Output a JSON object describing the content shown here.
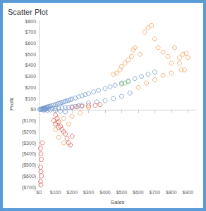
{
  "chart_data": {
    "type": "scatter",
    "title": "Scatter Plot",
    "x_label": "Sales",
    "y_label": "Profit",
    "xlim": [
      0,
      950
    ],
    "xticks": [
      {
        "value": 0,
        "label": "$0"
      },
      {
        "value": 100,
        "label": "$100"
      },
      {
        "value": 200,
        "label": "$200"
      },
      {
        "value": 300,
        "label": "$300"
      },
      {
        "value": 400,
        "label": "$400"
      },
      {
        "value": 500,
        "label": "$500"
      },
      {
        "value": 600,
        "label": "$600"
      },
      {
        "value": 700,
        "label": "$700"
      },
      {
        "value": 800,
        "label": "$800"
      },
      {
        "value": 900,
        "label": "$900"
      }
    ],
    "ylim": [
      -700,
      800
    ],
    "yticks": [
      {
        "value": -700,
        "label": "($700)"
      },
      {
        "value": -600,
        "label": "($600)"
      },
      {
        "value": -500,
        "label": "($500)"
      },
      {
        "value": -400,
        "label": "($400)"
      },
      {
        "value": -300,
        "label": "($300)"
      },
      {
        "value": -200,
        "label": "($200)"
      },
      {
        "value": -100,
        "label": "($100)"
      },
      {
        "value": 0,
        "label": "$0"
      },
      {
        "value": 100,
        "label": "$100"
      },
      {
        "value": 200,
        "label": "$200"
      },
      {
        "value": 300,
        "label": "$300"
      },
      {
        "value": 400,
        "label": "$400"
      },
      {
        "value": 500,
        "label": "$500"
      },
      {
        "value": 600,
        "label": "$600"
      },
      {
        "value": 700,
        "label": "$700"
      },
      {
        "value": 800,
        "label": "$800"
      }
    ],
    "grid": false,
    "marker": "hollow_circle",
    "series": [
      {
        "color": "#7399d0",
        "x": [
          5,
          10,
          15,
          20,
          25,
          30,
          35,
          40,
          45,
          50,
          55,
          60,
          70,
          80,
          90,
          100,
          110,
          120,
          130,
          140,
          150,
          160,
          170,
          180,
          190,
          200,
          220,
          240,
          260,
          280,
          300,
          330,
          360,
          400,
          430,
          460,
          500,
          540,
          580,
          620,
          660,
          700,
          40,
          60,
          80,
          100,
          120,
          140,
          160,
          180,
          200,
          220,
          240,
          260,
          100,
          130,
          160,
          30,
          50,
          70,
          300,
          350,
          400,
          450,
          500,
          550,
          20,
          25,
          35,
          45
        ],
        "values": [
          2,
          4,
          5,
          8,
          10,
          12,
          15,
          18,
          20,
          22,
          25,
          28,
          32,
          35,
          40,
          45,
          50,
          55,
          60,
          65,
          70,
          75,
          80,
          85,
          90,
          95,
          105,
          115,
          125,
          135,
          145,
          160,
          175,
          190,
          205,
          220,
          240,
          260,
          280,
          300,
          320,
          340,
          2,
          5,
          10,
          8,
          12,
          15,
          18,
          20,
          25,
          30,
          35,
          40,
          -10,
          -15,
          -20,
          -5,
          -8,
          -3,
          60,
          70,
          80,
          100,
          120,
          150,
          1,
          6,
          3,
          9
        ]
      },
      {
        "color": "#f5a05a",
        "x": [
          450,
          470,
          490,
          500,
          520,
          540,
          560,
          570,
          580,
          610,
          640,
          660,
          680,
          700,
          720,
          750,
          780,
          800,
          820,
          850,
          870,
          890,
          900,
          880,
          860,
          600,
          650,
          700,
          750,
          800,
          850,
          100,
          120,
          150,
          180,
          200,
          250,
          300,
          150,
          110
        ],
        "values": [
          320,
          330,
          360,
          390,
          420,
          450,
          480,
          540,
          560,
          500,
          700,
          740,
          760,
          640,
          560,
          520,
          480,
          420,
          560,
          470,
          500,
          510,
          470,
          360,
          360,
          200,
          240,
          270,
          310,
          330,
          420,
          -180,
          -250,
          -300,
          -130,
          -60,
          -30,
          20,
          -80,
          -110
        ]
      },
      {
        "color": "#e0605a",
        "x": [
          10,
          12,
          15,
          10,
          12,
          15,
          10,
          12,
          20,
          100,
          110,
          120,
          130,
          140,
          150,
          160,
          170,
          180,
          190,
          200,
          200,
          230,
          260,
          300,
          340,
          370,
          90,
          100,
          120
        ],
        "values": [
          -350,
          -400,
          -450,
          -520,
          -560,
          -600,
          -650,
          -680,
          -300,
          -50,
          -80,
          -110,
          -150,
          -180,
          -200,
          -220,
          -260,
          -300,
          -320,
          -240,
          20,
          25,
          30,
          35,
          40,
          45,
          -100,
          -130,
          -160
        ]
      },
      {
        "color": "#7bbf6a",
        "x": [
          500,
          520,
          540
        ],
        "values": [
          230,
          240,
          250
        ]
      }
    ]
  }
}
